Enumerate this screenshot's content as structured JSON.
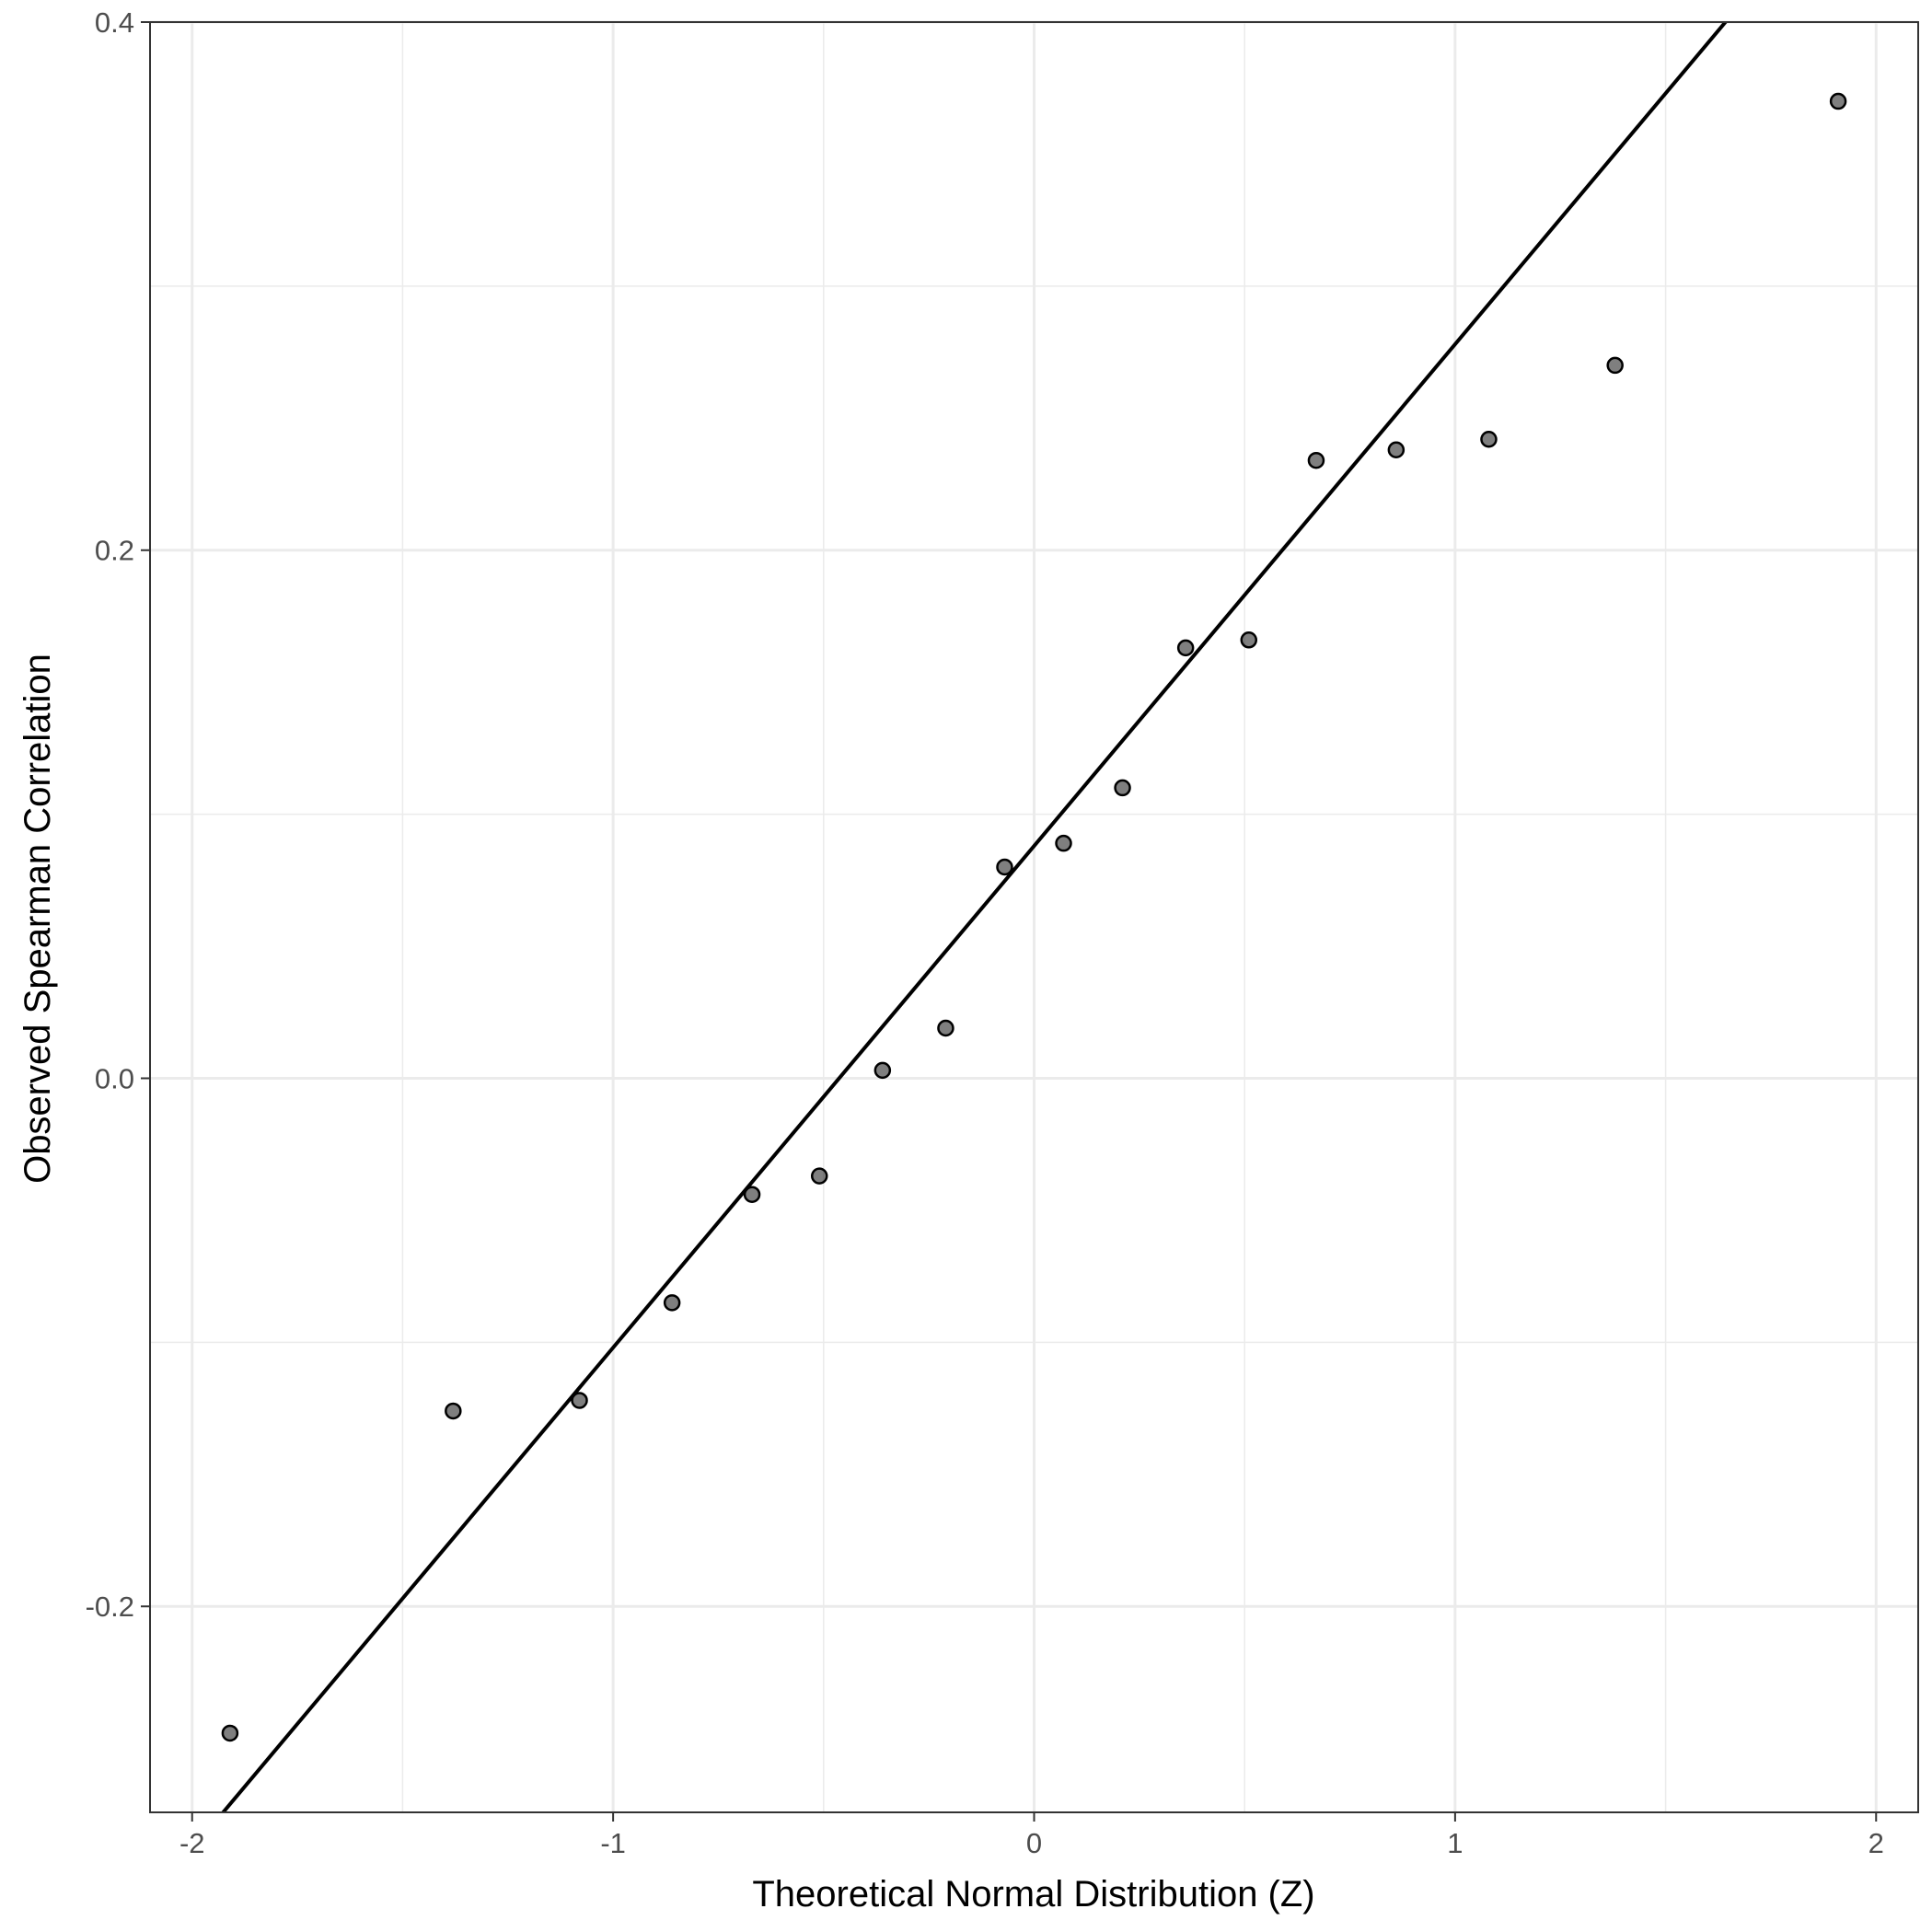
{
  "chart_data": {
    "type": "scatter",
    "title": "",
    "xlabel": "Theoretical Normal Distribution (Z)",
    "ylabel": "Observed Spearman Correlation",
    "xlim": [
      -2.1,
      2.1
    ],
    "ylim": [
      -0.278,
      0.4
    ],
    "x_ticks": [
      -2,
      -1,
      0,
      1,
      2
    ],
    "x_tick_labels": [
      "-2",
      "-1",
      "0",
      "1",
      "2"
    ],
    "y_ticks": [
      -0.2,
      0.0,
      0.2,
      0.4
    ],
    "y_tick_labels": [
      "-0.2",
      "0.0",
      "0.2",
      "0.4"
    ],
    "grid": true,
    "legend": "none",
    "reference_line": {
      "intercept": 0.088,
      "slope": 0.19
    },
    "point_color": "#808080",
    "line_color": "#000000",
    "points": [
      {
        "x": -1.91,
        "y": -0.248
      },
      {
        "x": -1.38,
        "y": -0.126
      },
      {
        "x": -1.08,
        "y": -0.122
      },
      {
        "x": -0.86,
        "y": -0.085
      },
      {
        "x": -0.67,
        "y": -0.044
      },
      {
        "x": -0.51,
        "y": -0.037
      },
      {
        "x": -0.36,
        "y": 0.003
      },
      {
        "x": -0.21,
        "y": 0.019
      },
      {
        "x": -0.07,
        "y": 0.08
      },
      {
        "x": 0.07,
        "y": 0.089
      },
      {
        "x": 0.21,
        "y": 0.11
      },
      {
        "x": 0.36,
        "y": 0.163
      },
      {
        "x": 0.51,
        "y": 0.166
      },
      {
        "x": 0.67,
        "y": 0.234
      },
      {
        "x": 0.86,
        "y": 0.238
      },
      {
        "x": 1.08,
        "y": 0.242
      },
      {
        "x": 1.38,
        "y": 0.27
      },
      {
        "x": 1.91,
        "y": 0.37
      }
    ]
  }
}
